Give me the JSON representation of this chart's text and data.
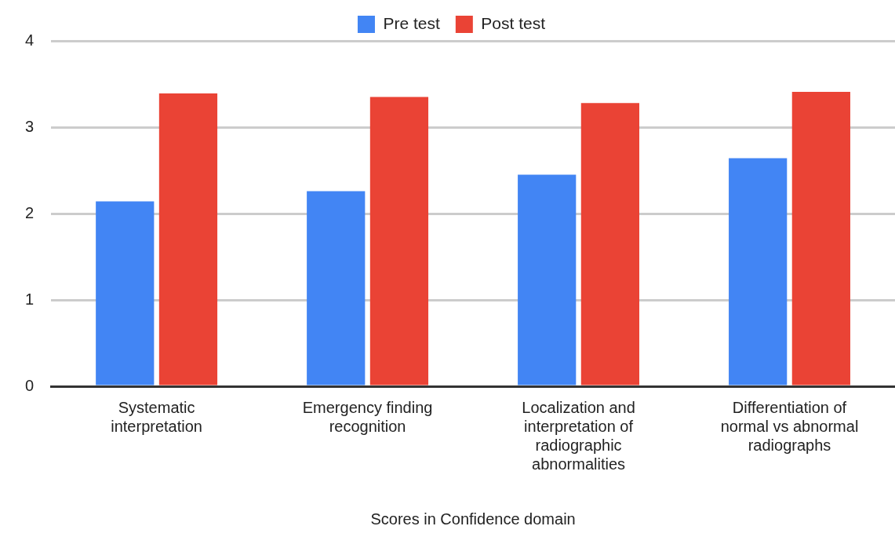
{
  "chart_data": {
    "type": "bar",
    "xlabel": "Scores in Confidence domain",
    "categories": [
      "Systematic interpretation",
      "Emergency finding recognition",
      "Localization and interpretation of radiographic abnormalities",
      "Differentiation of normal vs abnormal radiographs"
    ],
    "series": [
      {
        "name": "Pre test",
        "color": "#4285f4",
        "values": [
          2.14,
          2.26,
          2.45,
          2.64
        ]
      },
      {
        "name": "Post test",
        "color": "#ea4335",
        "values": [
          3.39,
          3.35,
          3.28,
          3.41
        ]
      }
    ],
    "ylim": [
      0,
      4
    ],
    "yticks": [
      0,
      1,
      2,
      3,
      4
    ],
    "grid": "y",
    "legend": "top"
  }
}
